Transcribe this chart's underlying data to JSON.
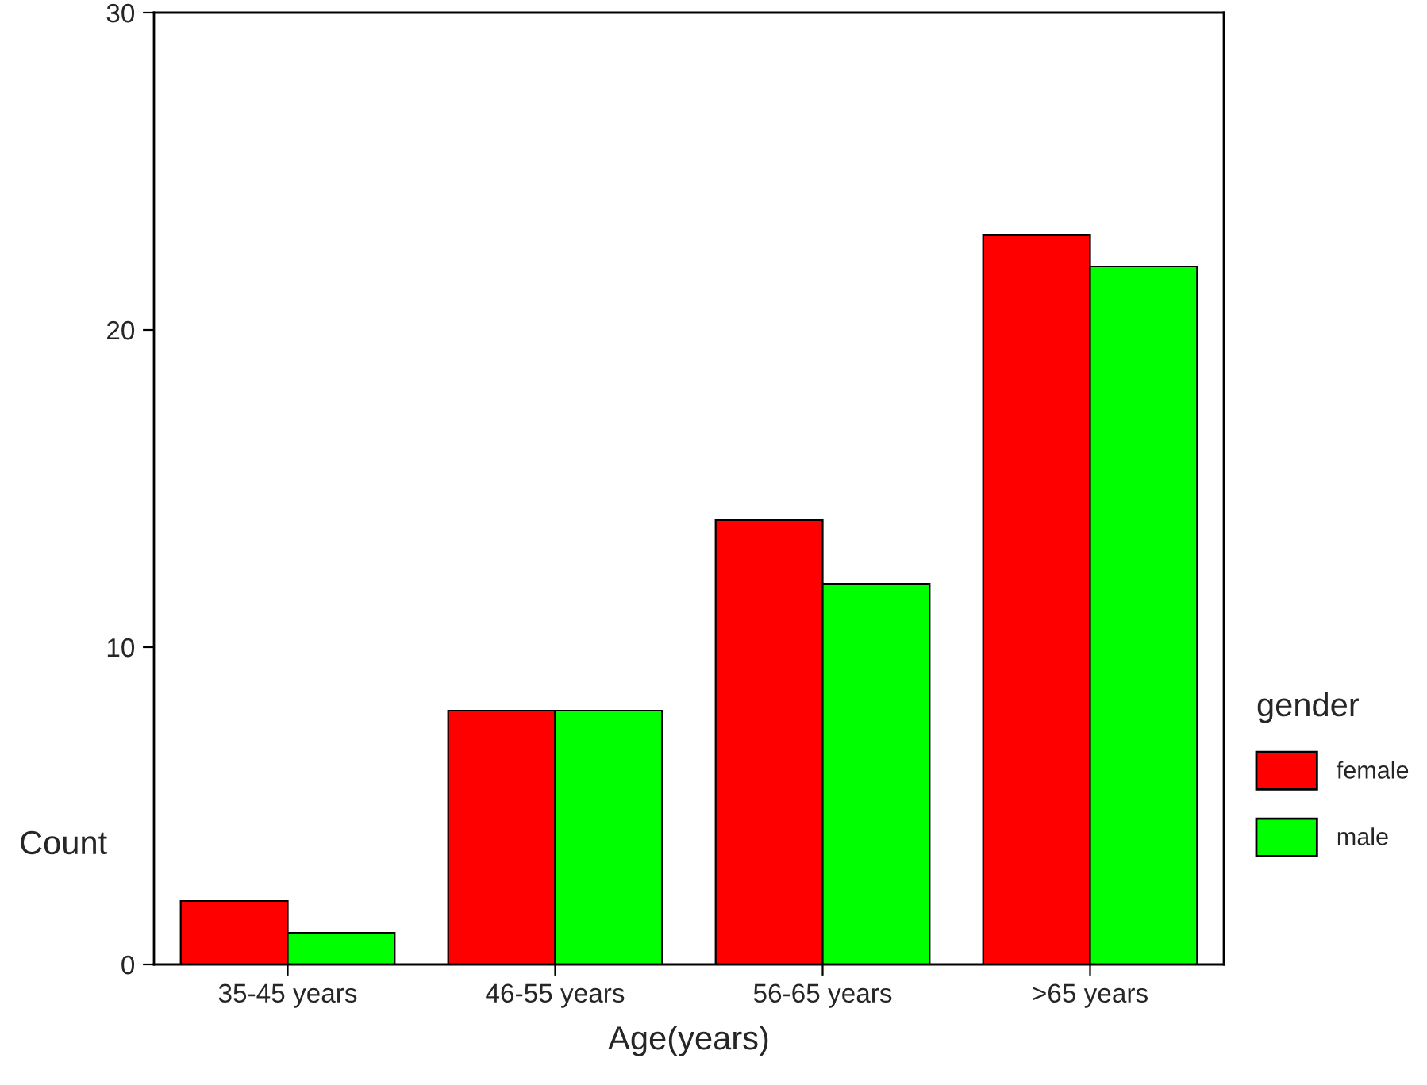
{
  "chart_data": {
    "type": "bar",
    "categories": [
      "35-45 years",
      "46-55 years",
      "56-65 years",
      ">65 years"
    ],
    "series": [
      {
        "name": "female",
        "color": "#ff0000",
        "values": [
          2,
          8,
          14,
          23
        ]
      },
      {
        "name": "male",
        "color": "#00ff00",
        "values": [
          1,
          8,
          12,
          22
        ]
      }
    ],
    "xlabel": "Age(years)",
    "ylabel": "Count",
    "legend_title": "gender",
    "ylim": [
      0,
      30
    ],
    "yticks": [
      0,
      10,
      20,
      30
    ],
    "grid": false,
    "legend": "right"
  }
}
